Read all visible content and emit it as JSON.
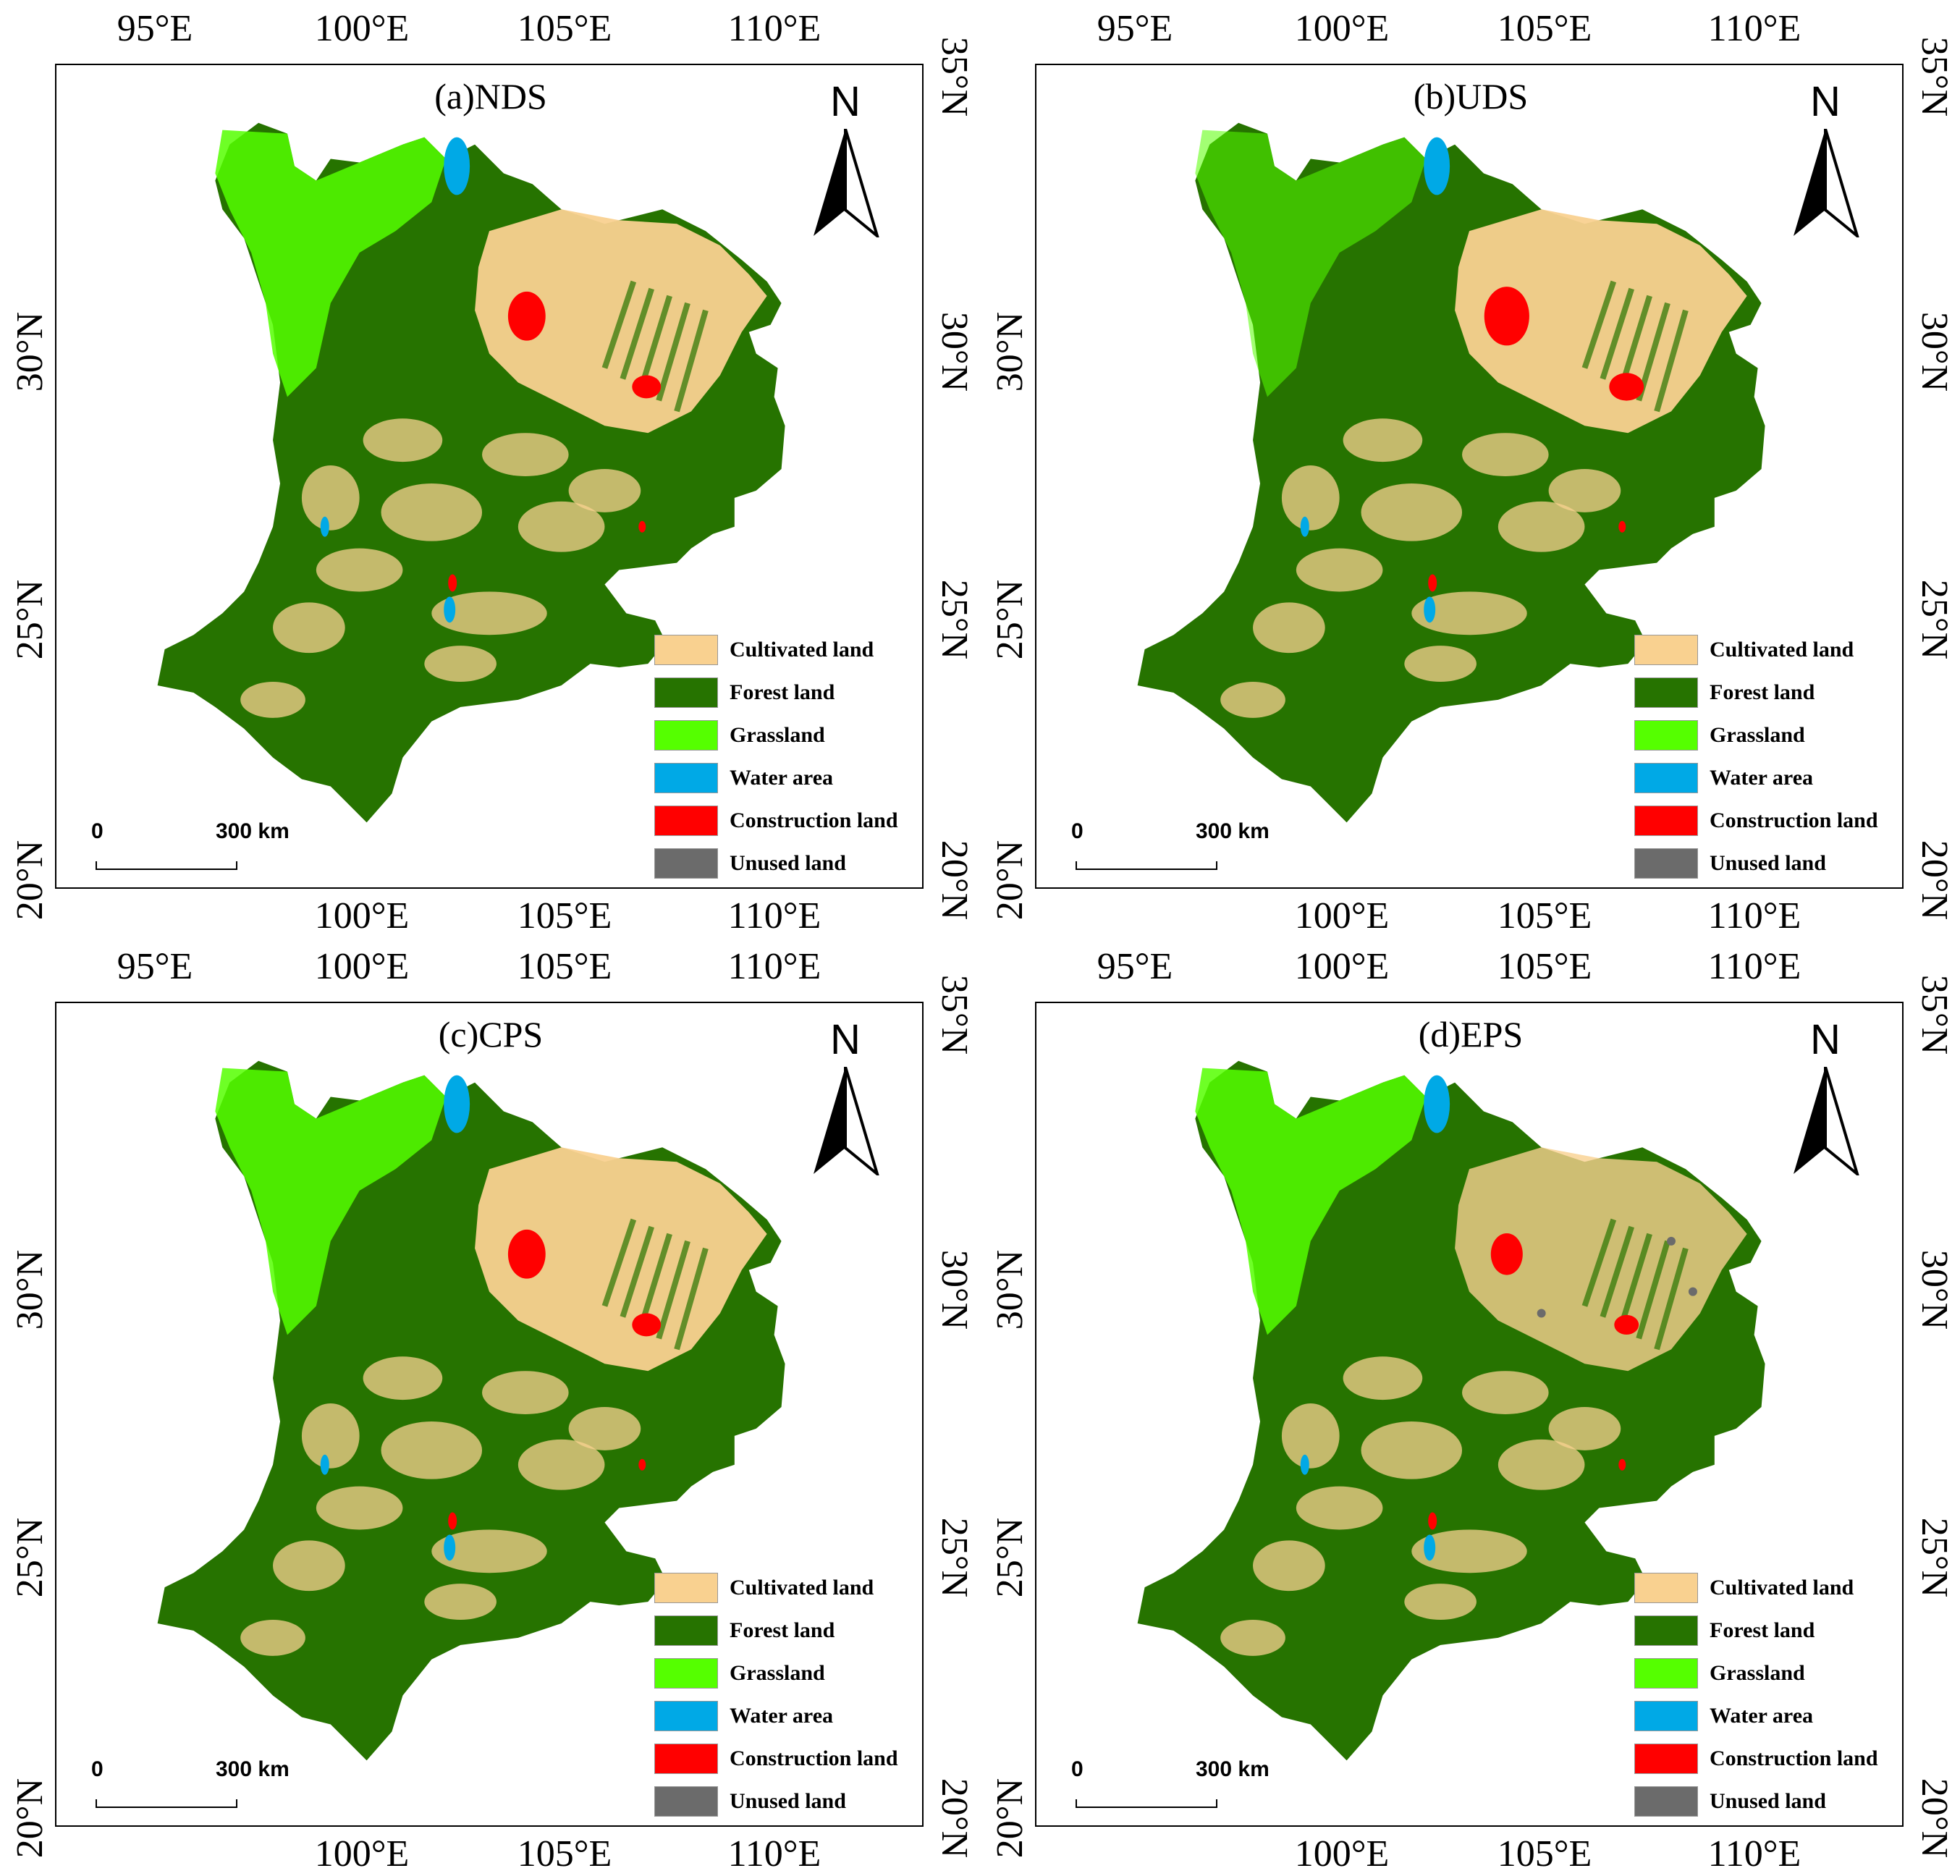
{
  "longitude_ticks": [
    "95°E",
    "100°E",
    "105°E",
    "110°E"
  ],
  "latitude_ticks": [
    "35°N",
    "30°N",
    "25°N",
    "20°N"
  ],
  "north_arrow": {
    "label": "N",
    "icon": "north-arrow-icon"
  },
  "scale_bar": {
    "start": "0",
    "end": "300 km"
  },
  "legend": [
    {
      "label": "Cultivated land",
      "color": "#f9d190"
    },
    {
      "label": "Forest land",
      "color": "#267300"
    },
    {
      "label": "Grassland",
      "color": "#55ff00"
    },
    {
      "label": "Water area",
      "color": "#00a9e6"
    },
    {
      "label": "Construction land",
      "color": "#ff0000"
    },
    {
      "label": "Unused land",
      "color": "#6b6b6b"
    }
  ],
  "panels": [
    {
      "title": "(a)NDS"
    },
    {
      "title": "(b)UDS"
    },
    {
      "title": "(c)CPS"
    },
    {
      "title": "(d)EPS"
    }
  ]
}
